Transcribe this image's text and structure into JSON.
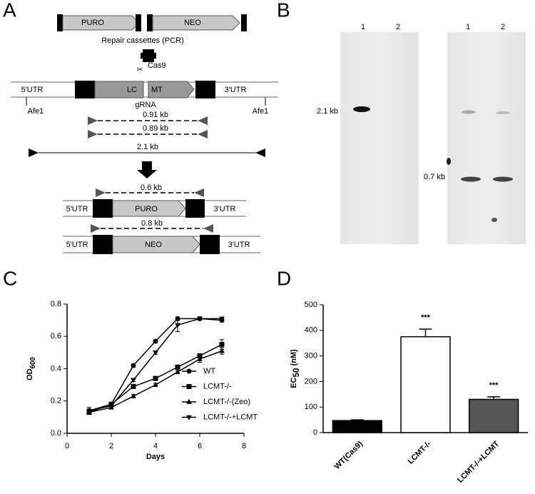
{
  "panels": [
    "A",
    "B",
    "C",
    "D"
  ],
  "diagram": {
    "cassettes": [
      "PURO",
      "NEO"
    ],
    "cassette_caption": "Repair cassettes (PCR)",
    "enzyme": "Cas9",
    "locus": [
      "5'UTR",
      "LC",
      "MT",
      "3'UTR"
    ],
    "guide": "gRNA",
    "sites": [
      "Afe1",
      "Afe1"
    ],
    "products": [
      "0.91 kb",
      "0.89 kb",
      "2.1 kb"
    ],
    "puro_allele": [
      "5'UTR",
      "PURO",
      "3'UTR"
    ],
    "puro_product": "0.6 kb",
    "neo_allele": [
      "5'UTR",
      "NEO",
      "3'UTR"
    ],
    "neo_product": "0.8 kb"
  },
  "blot": {
    "lanes_left": [
      "1",
      "2"
    ],
    "lanes_right": [
      "1",
      "2"
    ],
    "markers": [
      "2.1 kb",
      "0.7 kb"
    ]
  },
  "chart_data": [
    {
      "type": "line",
      "xlabel": "Days",
      "ylabel": "OD",
      "ylabel_subscript": "600",
      "x": [
        1,
        2,
        3,
        4,
        5,
        6,
        7
      ],
      "xlim": [
        0,
        8
      ],
      "xticks": [
        0,
        2,
        4,
        6,
        8
      ],
      "ylim": [
        0,
        0.8
      ],
      "yticks": [
        {
          "value": 0,
          "label": "0.0"
        },
        0.2,
        0.4,
        0.6,
        0.8
      ],
      "legend": "lower right",
      "series": [
        {
          "name": "WT",
          "color": "#000000",
          "marker": "circle",
          "values": [
            0.14,
            0.18,
            0.42,
            0.57,
            0.71,
            0.71,
            0.7
          ],
          "errors": [
            0.01,
            0.01,
            0.01,
            0.01,
            0.01,
            0.01,
            0.01
          ]
        },
        {
          "name": "LCMT-/-",
          "color": "#000000",
          "marker": "square",
          "values": [
            0.13,
            0.18,
            0.29,
            0.34,
            0.41,
            0.48,
            0.55
          ],
          "errors": [
            0.01,
            0.01,
            0.01,
            0.01,
            0.01,
            0.01,
            0.03
          ]
        },
        {
          "name": "LCMT-/-(Zeo)",
          "color": "#000000",
          "marker": "triangle-up",
          "values": [
            0.13,
            0.16,
            0.23,
            0.3,
            0.38,
            0.46,
            0.51
          ],
          "errors": [
            0.01,
            0.01,
            0.01,
            0.01,
            0.01,
            0.02,
            0.02
          ]
        },
        {
          "name": "LCMT-/-+LCMT",
          "color": "#000000",
          "marker": "triangle-down",
          "values": [
            0.14,
            0.17,
            0.33,
            0.5,
            0.67,
            0.71,
            0.71
          ],
          "errors": [
            0.02,
            0.01,
            0.01,
            0.01,
            0.04,
            0.01,
            0.01
          ]
        }
      ]
    },
    {
      "type": "bar",
      "ylabel": "EC",
      "ylabel_subscript": "50",
      "ylabel_suffix": " (nM)",
      "categories": [
        "WT(Cas9)",
        "LCMT-/-",
        "LCMT-/-+LCMT"
      ],
      "values": [
        47,
        375,
        130
      ],
      "errors": [
        3,
        30,
        10
      ],
      "colors": [
        "#000000",
        "#ffffff",
        "#555555"
      ],
      "annotations": [
        null,
        "***",
        "***"
      ],
      "ylim": [
        0,
        500
      ],
      "yticks": [
        0,
        100,
        200,
        300,
        400,
        500
      ]
    }
  ]
}
